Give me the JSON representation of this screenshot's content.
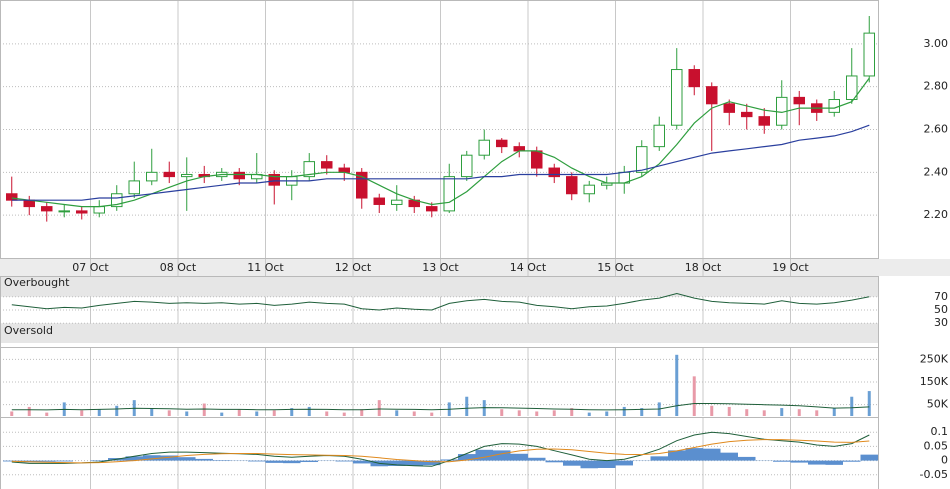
{
  "chart_data": [
    {
      "type": "candlestick",
      "categories": [
        null,
        null,
        null,
        null,
        null,
        "07 Oct",
        null,
        null,
        null,
        null,
        "08 Oct",
        null,
        null,
        null,
        null,
        "11 Oct",
        null,
        null,
        null,
        null,
        "12 Oct",
        null,
        null,
        null,
        null,
        "13 Oct",
        null,
        null,
        null,
        null,
        "14 Oct",
        null,
        null,
        null,
        null,
        "15 Oct",
        null,
        null,
        null,
        null,
        "18 Oct",
        null,
        null,
        null,
        null,
        "19 Oct",
        null,
        null,
        null,
        null
      ],
      "open": [
        2.3,
        2.27,
        2.24,
        2.22,
        2.22,
        2.21,
        2.24,
        2.3,
        2.36,
        2.4,
        2.38,
        2.39,
        2.38,
        2.4,
        2.37,
        2.39,
        2.34,
        2.38,
        2.45,
        2.42,
        2.4,
        2.28,
        2.25,
        2.27,
        2.24,
        2.22,
        2.38,
        2.48,
        2.55,
        2.52,
        2.5,
        2.42,
        2.38,
        2.3,
        2.34,
        2.35,
        2.4,
        2.52,
        2.62,
        2.88,
        2.8,
        2.72,
        2.68,
        2.66,
        2.62,
        2.75,
        2.72,
        2.68,
        2.74,
        2.85
      ],
      "high": [
        2.38,
        2.29,
        2.26,
        2.25,
        2.24,
        2.27,
        2.34,
        2.45,
        2.51,
        2.45,
        2.47,
        2.43,
        2.42,
        2.42,
        2.49,
        2.41,
        2.41,
        2.49,
        2.48,
        2.44,
        2.42,
        2.3,
        2.34,
        2.29,
        2.26,
        2.44,
        2.5,
        2.6,
        2.56,
        2.54,
        2.52,
        2.44,
        2.4,
        2.36,
        2.38,
        2.43,
        2.55,
        2.66,
        2.98,
        2.9,
        2.82,
        2.74,
        2.72,
        2.7,
        2.83,
        2.78,
        2.74,
        2.78,
        2.98,
        3.13
      ],
      "low": [
        2.24,
        2.2,
        2.17,
        2.19,
        2.18,
        2.19,
        2.22,
        2.28,
        2.34,
        2.35,
        2.22,
        2.35,
        2.36,
        2.34,
        2.35,
        2.25,
        2.27,
        2.36,
        2.39,
        2.36,
        2.23,
        2.21,
        2.22,
        2.21,
        2.19,
        2.21,
        2.36,
        2.46,
        2.49,
        2.47,
        2.38,
        2.35,
        2.27,
        2.26,
        2.32,
        2.3,
        2.38,
        2.5,
        2.6,
        2.76,
        2.5,
        2.62,
        2.6,
        2.58,
        2.6,
        2.62,
        2.64,
        2.66,
        2.72,
        2.82
      ],
      "close": [
        2.27,
        2.24,
        2.22,
        2.22,
        2.21,
        2.24,
        2.3,
        2.36,
        2.4,
        2.38,
        2.39,
        2.38,
        2.4,
        2.37,
        2.39,
        2.34,
        2.38,
        2.45,
        2.42,
        2.4,
        2.28,
        2.25,
        2.27,
        2.24,
        2.22,
        2.38,
        2.48,
        2.55,
        2.52,
        2.5,
        2.42,
        2.38,
        2.3,
        2.34,
        2.35,
        2.4,
        2.52,
        2.62,
        2.88,
        2.8,
        2.72,
        2.68,
        2.66,
        2.62,
        2.75,
        2.72,
        2.68,
        2.74,
        2.85,
        3.05
      ],
      "up_color": "#2e9e3e",
      "down_color": "#c8102e",
      "series": [
        {
          "color": "#2e9e3e",
          "values": [
            2.28,
            2.27,
            2.26,
            2.25,
            2.24,
            2.24,
            2.25,
            2.27,
            2.3,
            2.33,
            2.36,
            2.38,
            2.39,
            2.39,
            2.39,
            2.38,
            2.38,
            2.39,
            2.4,
            2.4,
            2.38,
            2.34,
            2.3,
            2.27,
            2.25,
            2.26,
            2.31,
            2.38,
            2.45,
            2.5,
            2.5,
            2.47,
            2.42,
            2.38,
            2.35,
            2.35,
            2.38,
            2.44,
            2.53,
            2.63,
            2.7,
            2.73,
            2.71,
            2.69,
            2.68,
            2.7,
            2.7,
            2.7,
            2.73,
            2.84
          ]
        },
        {
          "color": "#2a3f9e",
          "values": [
            2.27,
            2.27,
            2.27,
            2.27,
            2.27,
            2.28,
            2.28,
            2.29,
            2.3,
            2.31,
            2.32,
            2.33,
            2.34,
            2.35,
            2.35,
            2.36,
            2.36,
            2.36,
            2.37,
            2.37,
            2.37,
            2.37,
            2.37,
            2.37,
            2.37,
            2.37,
            2.37,
            2.38,
            2.38,
            2.39,
            2.39,
            2.39,
            2.39,
            2.39,
            2.39,
            2.4,
            2.41,
            2.43,
            2.45,
            2.47,
            2.49,
            2.5,
            2.51,
            2.52,
            2.53,
            2.55,
            2.56,
            2.57,
            2.59,
            2.62
          ]
        }
      ],
      "ylim": [
        2.0,
        3.2
      ],
      "yticks": [
        {
          "value": 2.2,
          "label": "2.20"
        },
        {
          "value": 2.4,
          "label": "2.40"
        },
        {
          "value": 2.6,
          "label": "2.60"
        },
        {
          "value": 2.8,
          "label": "2.80"
        },
        {
          "value": 3.0,
          "label": "3.00"
        }
      ],
      "grid": true
    },
    {
      "type": "oscillator",
      "overbought_label": "Overbought",
      "oversold_label": "Oversold",
      "series": [
        {
          "color": "#1f5f3a",
          "values": [
            58,
            55,
            52,
            54,
            53,
            57,
            60,
            63,
            62,
            60,
            61,
            60,
            61,
            59,
            60,
            57,
            59,
            62,
            60,
            59,
            52,
            50,
            53,
            51,
            50,
            60,
            64,
            66,
            63,
            62,
            57,
            55,
            52,
            55,
            56,
            60,
            65,
            68,
            75,
            68,
            63,
            61,
            60,
            59,
            64,
            60,
            59,
            61,
            65,
            70
          ]
        }
      ],
      "ylim": [
        0,
        100
      ],
      "yticks": [
        70,
        50,
        30
      ]
    },
    {
      "type": "volume",
      "values": [
        20000,
        40000,
        15000,
        60000,
        25000,
        30000,
        45000,
        70000,
        35000,
        25000,
        20000,
        55000,
        15000,
        30000,
        20000,
        25000,
        35000,
        40000,
        20000,
        15000,
        30000,
        70000,
        25000,
        20000,
        15000,
        60000,
        85000,
        70000,
        30000,
        25000,
        20000,
        25000,
        35000,
        15000,
        20000,
        40000,
        35000,
        60000,
        270000,
        175000,
        45000,
        40000,
        30000,
        25000,
        35000,
        30000,
        25000,
        35000,
        85000,
        110000
      ],
      "up_color": "#6a9fd4",
      "down_color": "#e89aa8",
      "series": [
        {
          "color": "#1f5f3a",
          "values": [
            28000,
            28000,
            27000,
            29000,
            28000,
            29000,
            31000,
            34000,
            33000,
            32000,
            30000,
            31000,
            29000,
            29000,
            28000,
            28000,
            29000,
            30000,
            29000,
            28000,
            28000,
            31000,
            30000,
            29000,
            28000,
            30000,
            34000,
            37000,
            36000,
            35000,
            33000,
            31000,
            30000,
            28000,
            27000,
            28000,
            29000,
            31000,
            45000,
            55000,
            55000,
            54000,
            52000,
            50000,
            48000,
            45000,
            40000,
            35000,
            36000,
            40000
          ]
        }
      ],
      "ylim": [
        0,
        300000
      ],
      "yticks": [
        {
          "value": 250000,
          "label": "250K"
        },
        {
          "value": 150000,
          "label": "150K"
        },
        {
          "value": 50000,
          "label": "50K"
        }
      ]
    },
    {
      "type": "macd",
      "series": [
        {
          "color": "#1f5f3a",
          "values": [
            -0.005,
            -0.01,
            -0.01,
            -0.01,
            -0.008,
            -0.005,
            0.005,
            0.015,
            0.025,
            0.03,
            0.03,
            0.028,
            0.026,
            0.024,
            0.022,
            0.015,
            0.012,
            0.015,
            0.018,
            0.015,
            0.005,
            -0.01,
            -0.015,
            -0.018,
            -0.02,
            0.0,
            0.025,
            0.05,
            0.06,
            0.058,
            0.05,
            0.035,
            0.02,
            0.005,
            0.0,
            0.005,
            0.02,
            0.04,
            0.07,
            0.09,
            0.1,
            0.095,
            0.085,
            0.075,
            0.07,
            0.065,
            0.055,
            0.05,
            0.06,
            0.09
          ]
        },
        {
          "color": "#e08a1e",
          "values": [
            -0.002,
            -0.004,
            -0.006,
            -0.007,
            -0.008,
            -0.007,
            -0.004,
            0.0,
            0.006,
            0.012,
            0.018,
            0.022,
            0.024,
            0.025,
            0.025,
            0.023,
            0.021,
            0.02,
            0.019,
            0.018,
            0.015,
            0.01,
            0.004,
            0.0,
            -0.004,
            -0.004,
            0.002,
            0.012,
            0.024,
            0.034,
            0.04,
            0.041,
            0.038,
            0.032,
            0.026,
            0.022,
            0.021,
            0.025,
            0.034,
            0.046,
            0.058,
            0.067,
            0.072,
            0.074,
            0.074,
            0.072,
            0.069,
            0.065,
            0.064,
            0.069
          ]
        }
      ],
      "histogram": {
        "color": "#5b8fcf",
        "values": [
          -0.003,
          -0.006,
          -0.004,
          -0.003,
          0,
          0.002,
          0.009,
          0.015,
          0.019,
          0.018,
          0.012,
          0.006,
          0.002,
          -0.001,
          -0.003,
          -0.008,
          -0.009,
          -0.005,
          -0.001,
          -0.003,
          -0.01,
          -0.02,
          -0.019,
          -0.018,
          -0.016,
          0.004,
          0.023,
          0.038,
          0.036,
          0.024,
          0.01,
          -0.006,
          -0.018,
          -0.027,
          -0.026,
          -0.017,
          -0.001,
          0.015,
          0.036,
          0.044,
          0.042,
          0.028,
          0.013,
          0.001,
          -0.004,
          -0.007,
          -0.014,
          -0.015,
          -0.004,
          0.021
        ]
      },
      "ylim": [
        -0.1,
        0.15
      ],
      "yticks": [
        0.1,
        0.05,
        0,
        -0.05
      ]
    }
  ]
}
